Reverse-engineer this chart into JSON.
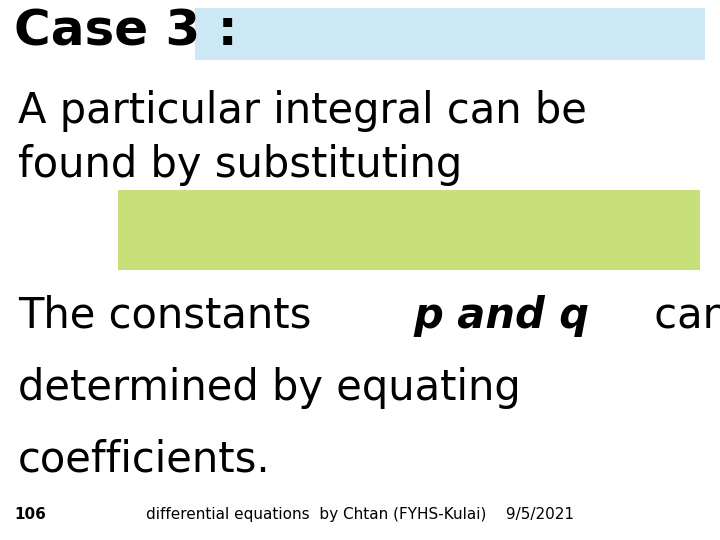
{
  "bg_color": "#ffffff",
  "title_prefix": "Case 3 : ",
  "title_highlight_color": "#cce8f4",
  "title_fontsize": 36,
  "body_fontsize": 30,
  "body_fontsize2": 30,
  "green_box_color": "#c8e07a",
  "footer_text": "differential equations  by Chtan (FYHS-Kulai)    9/5/2021",
  "footer_num": "106",
  "footer_fontsize": 11,
  "line1_part1": "The constants ",
  "line1_bold": "p and q",
  "line1_part2": " can be",
  "line2": "determined by equating",
  "line3": "coefficients."
}
